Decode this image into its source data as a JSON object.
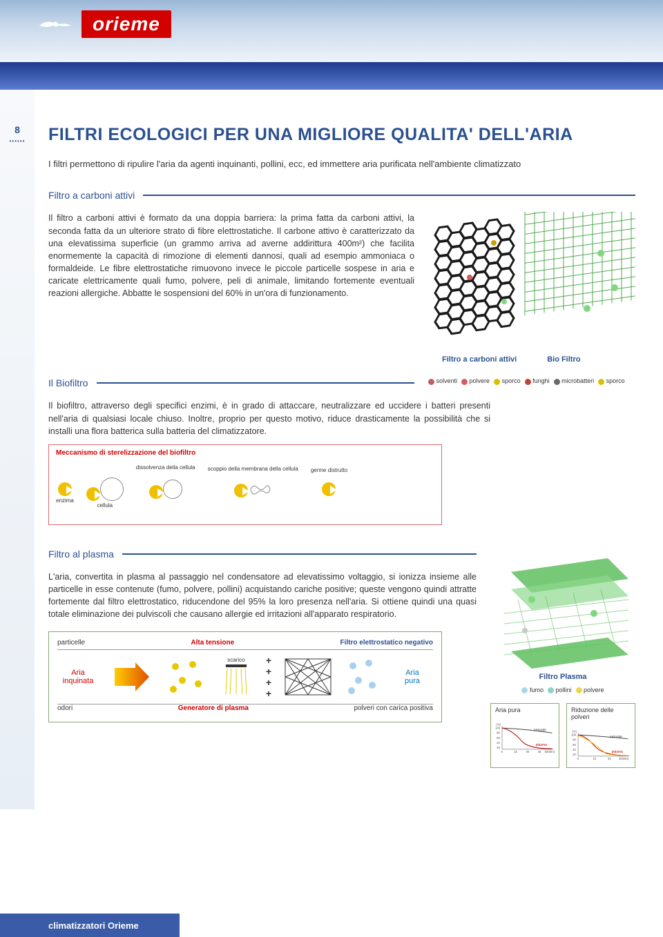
{
  "brand": {
    "name": "orieme",
    "footer": "climatizzatori Orieme"
  },
  "page": {
    "number": "8"
  },
  "title": {
    "line": "FILTRI ECOLOGICI PER UNA MIGLIORE QUALITA' DELL'ARIA"
  },
  "intro": "I filtri permettono di ripulire l'aria da agenti inquinanti, pollini, ecc, ed immettere aria purificata nell'ambiente climatizzato",
  "sec1": {
    "heading": "Filtro a carboni attivi",
    "body": "Il filtro a carboni attivi è formato da una doppia barriera: la prima fatta da carboni attivi, la seconda fatta da un ulteriore strato di fibre elettrostatiche. Il carbone attivo è caratterizzato da una elevatissima superficie (un grammo arriva ad averne addirittura 400m²) che facilita enormemente la capacità di rimozione di elementi dannosi, quali ad esempio ammoniaca o formaldeide. Le fibre elettrostatiche rimuovono invece le piccole particelle sospese in aria e caricate elettricamente quali fumo, polvere, peli di animale, limitando fortemente eventuali reazioni allergiche. Abbatte le sospensioni del 60% in un'ora di funzionamento.",
    "caption1": "Filtro a carboni attivi",
    "caption2": "Bio Filtro"
  },
  "legend1": [
    {
      "icon": "🧪",
      "label": "solventi",
      "color": "#c06060"
    },
    {
      "icon": "◉",
      "label": "polvere",
      "color": "#d85a5a"
    },
    {
      "icon": "●",
      "label": "sporco",
      "color": "#d8c000"
    },
    {
      "icon": "🌿",
      "label": "funghi",
      "color": "#c0443a"
    },
    {
      "icon": "✴",
      "label": "microbatteri",
      "color": "#6a6a6a"
    },
    {
      "icon": "●",
      "label": "sporco",
      "color": "#d8c000"
    }
  ],
  "sec2": {
    "heading": "Il Biofiltro",
    "body": "Il biofiltro, attraverso degli specifici enzimi, è in grado di attaccare, neutralizzare ed uccidere i batteri presenti nell'aria di qualsiasi locale chiuso. Inoltre, proprio per questo motivo, riduce drasticamente la possibilità che si installi una flora batterica sulla batteria del climatizzatore.",
    "mech_title": "Meccanismo di sterelizzazione del biofiltro",
    "stages": [
      {
        "top": "",
        "bottom": "enzima"
      },
      {
        "top": "",
        "bottom": "cellula"
      },
      {
        "top": "dissolvenza della cellula",
        "bottom": ""
      },
      {
        "top": "scoppio della membrana della cellula",
        "bottom": ""
      },
      {
        "top": "germe distrutto",
        "bottom": ""
      }
    ]
  },
  "sec3": {
    "heading": "Filtro al plasma",
    "body": "L'aria, convertita in plasma al passaggio nel condensatore ad elevatissimo voltaggio, si ionizza insieme alle particelle in esse contenute (fumo, polvere, pollini) acquistando cariche positive; queste vengono quindi attratte fortemente dal filtro elettrostatico, riducendone del 95% la loro presenza nell'aria. Si ottiene quindi una quasi totale eliminazione dei pulviscoli che causano allergie ed irritazioni all'apparato respiratorio.",
    "plasma_caption": "Filtro Plasma",
    "legend2": [
      {
        "label": "fumo",
        "color": "#a8d8e8"
      },
      {
        "label": "pollini",
        "color": "#8dd4c8"
      },
      {
        "label": "polvere",
        "color": "#e8d850"
      }
    ],
    "diagram": {
      "particelle": "particelle",
      "alta": "Alta tensione",
      "filtro_neg": "Filtro elettrostatico negativo",
      "aria_in1": "Aria",
      "aria_in2": "inquinata",
      "aria_out1": "Aria",
      "aria_out2": "pura",
      "odori": "odori",
      "scarico": "scarico",
      "generatore": "Generatore di plasma",
      "polveri": "polveri con carica positiva"
    },
    "charts": {
      "c1_title": "Aria pura",
      "c2_title": "Riduzione delle polveri",
      "naturale": "naturale",
      "plasma": "plasma",
      "c1_xlabel": "60(Min)",
      "c2_xlabel": "30(Min)",
      "c1_xticks": [
        "0",
        "15",
        "30",
        "45"
      ],
      "c2_xticks": [
        "0",
        "10",
        "20"
      ],
      "yticks": [
        "(%)",
        "100",
        "80",
        "60",
        "40",
        "20"
      ],
      "colors": {
        "naturale": "#444444",
        "plasma": "#c00000",
        "axis": "#808080",
        "box": "#87a96b"
      }
    }
  },
  "colors": {
    "primary": "#2a5090",
    "red": "#d30000",
    "green_border": "#87a96b",
    "hex_black": "#1a1a1a",
    "grid_green": "#4fa84f",
    "plasma_green": "#5fbf5f"
  }
}
